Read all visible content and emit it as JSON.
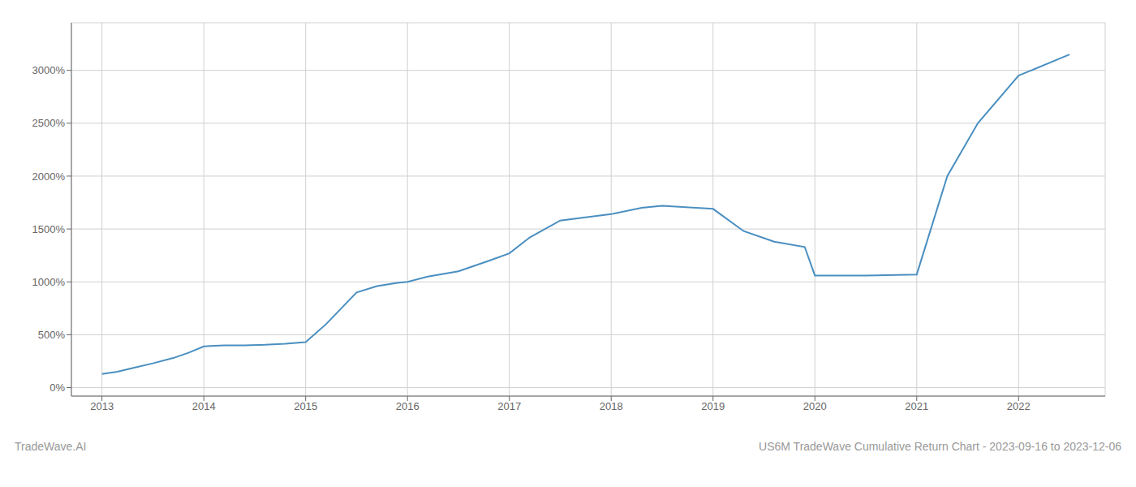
{
  "chart_data": {
    "type": "line",
    "title": "US6M TradeWave Cumulative Return Chart - 2023-09-16 to 2023-12-06",
    "annotations": [
      "TradeWave.AI"
    ],
    "x": [
      2013.0,
      2013.15,
      2013.3,
      2013.5,
      2013.7,
      2013.85,
      2014.0,
      2014.2,
      2014.4,
      2014.6,
      2014.8,
      2015.0,
      2015.2,
      2015.5,
      2015.7,
      2015.9,
      2016.0,
      2016.2,
      2016.5,
      2016.8,
      2017.0,
      2017.2,
      2017.5,
      2018.0,
      2018.3,
      2018.5,
      2019.0,
      2019.3,
      2019.6,
      2019.9,
      2020.0,
      2020.5,
      2021.0,
      2021.3,
      2021.6,
      2022.0,
      2022.5
    ],
    "values": [
      130,
      150,
      185,
      230,
      280,
      330,
      390,
      400,
      400,
      405,
      415,
      430,
      600,
      900,
      960,
      990,
      1000,
      1050,
      1100,
      1200,
      1270,
      1420,
      1580,
      1640,
      1700,
      1720,
      1690,
      1480,
      1380,
      1330,
      1060,
      1060,
      1070,
      2000,
      2500,
      2950,
      3150
    ],
    "color": "#4a8fc0",
    "xlim": [
      2012.7,
      2022.85
    ],
    "ylim": [
      -80,
      3450
    ],
    "xticks": [
      2013,
      2014,
      2015,
      2016,
      2017,
      2018,
      2019,
      2020,
      2021,
      2022
    ],
    "yticks": [
      {
        "value": 0,
        "label": "0%"
      },
      {
        "value": 500,
        "label": "500%"
      },
      {
        "value": 1000,
        "label": "1000%"
      },
      {
        "value": 1500,
        "label": "1500%"
      },
      {
        "value": 2000,
        "label": "2000%"
      },
      {
        "value": 2500,
        "label": "2500%"
      },
      {
        "value": 3000,
        "label": "3000%"
      }
    ],
    "grid": true
  }
}
